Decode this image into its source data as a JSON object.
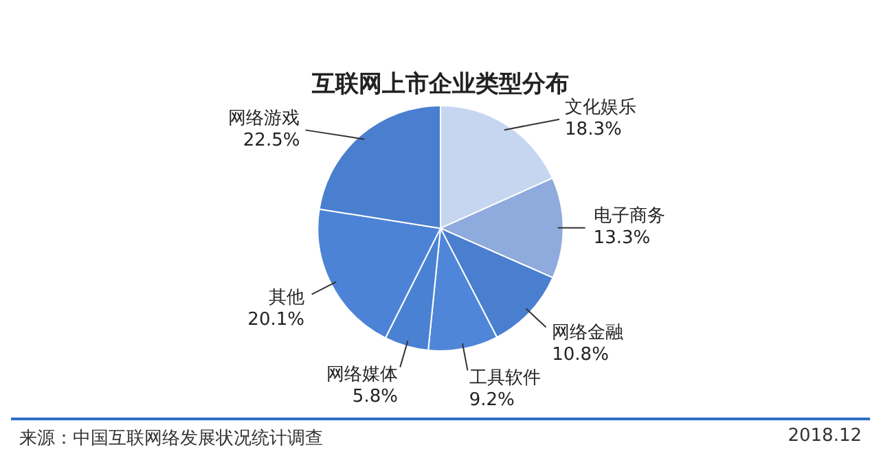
{
  "chart_data": {
    "type": "pie",
    "title": "互联网上市企业类型分布",
    "categories": [
      "文化娱乐",
      "电子商务",
      "网络金融",
      "工具软件",
      "网络媒体",
      "其他",
      "网络游戏"
    ],
    "values": [
      18.3,
      13.3,
      10.8,
      9.2,
      5.8,
      20.1,
      22.5
    ],
    "value_labels": [
      "18.3%",
      "13.3%",
      "10.8%",
      "9.2%",
      "5.8%",
      "20.1%",
      "22.5%"
    ],
    "colors": [
      "#c6d6f0",
      "#8faadc",
      "#4a7fd0",
      "#4f86d9",
      "#4b81d3",
      "#4c83d7",
      "#4a7ecf"
    ],
    "legend": false,
    "annotations": [
      "来源：中国互联网络发展状况统计调查",
      "2018.12"
    ]
  }
}
